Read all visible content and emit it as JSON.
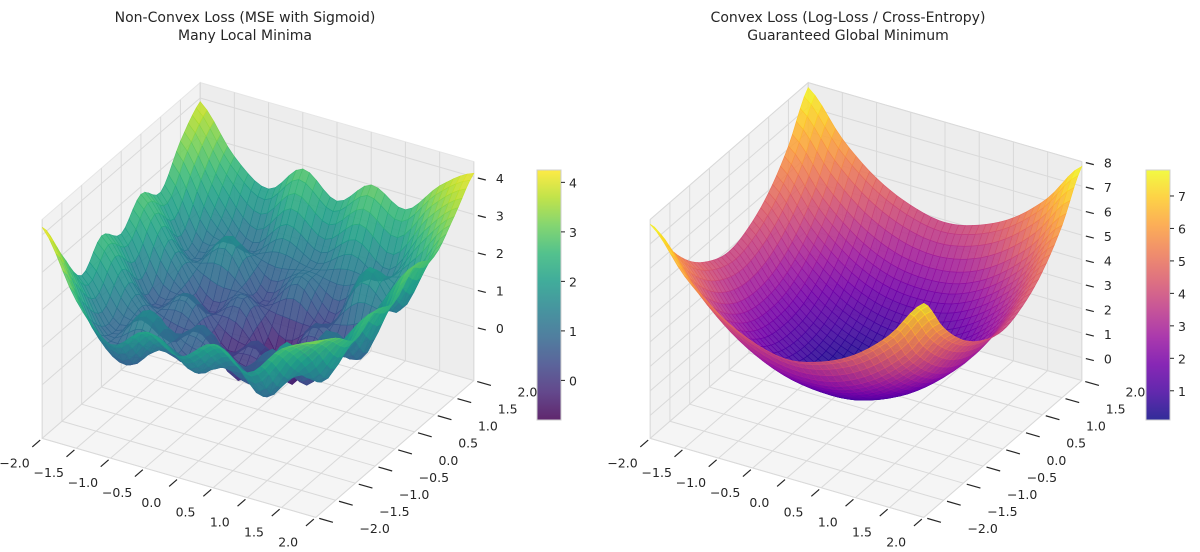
{
  "chart_data": [
    {
      "type": "surface3d",
      "title": [
        "Non-Convex Loss (MSE with Sigmoid)",
        "Many Local Minima"
      ],
      "colormap": "viridis",
      "xlim": [
        -2,
        2
      ],
      "ylim": [
        -2,
        2
      ],
      "zlim": [
        -1.43,
        4.41
      ],
      "xticks": [
        "−2.0",
        "−1.5",
        "−1.0",
        "−0.5",
        "0.0",
        "0.5",
        "1.0",
        "1.5",
        "2.0"
      ],
      "yticks": [
        "−2.0",
        "−1.5",
        "−1.0",
        "−0.5",
        "0.0",
        "0.5",
        "1.0",
        "1.5",
        "2.0"
      ],
      "zticks": [
        0,
        1,
        2,
        3,
        4
      ],
      "grid_axis": [
        -2,
        -1.5,
        -1,
        -0.5,
        0,
        0.5,
        1,
        1.5,
        2
      ],
      "z_grid": [
        [
          4.2,
          2.5,
          1.6,
          2.2,
          1.8,
          2.4,
          1.9,
          2.8,
          3.2
        ],
        [
          3.0,
          1.2,
          0.6,
          1.4,
          0.9,
          1.5,
          0.8,
          2.0,
          2.9
        ],
        [
          2.0,
          0.8,
          1.6,
          0.5,
          1.2,
          0.4,
          1.8,
          1.0,
          2.4
        ],
        [
          2.6,
          1.3,
          0.3,
          1.0,
          -0.2,
          0.9,
          0.2,
          1.6,
          2.7
        ],
        [
          2.2,
          0.6,
          1.1,
          -0.3,
          0.4,
          -0.5,
          1.2,
          0.7,
          2.5
        ],
        [
          2.8,
          1.5,
          0.2,
          0.8,
          -0.8,
          0.6,
          0.1,
          1.7,
          3.0
        ],
        [
          2.4,
          0.9,
          1.7,
          0.3,
          1.0,
          0.2,
          1.9,
          1.1,
          2.8
        ],
        [
          3.3,
          1.8,
          0.9,
          1.5,
          1.1,
          1.6,
          1.2,
          2.4,
          3.4
        ],
        [
          3.9,
          2.7,
          2.1,
          2.9,
          2.3,
          3.0,
          2.6,
          3.5,
          4.1
        ]
      ],
      "colorbar": {
        "min": -0.8,
        "max": 4.25,
        "ticks": [
          0,
          1,
          2,
          3,
          4
        ]
      },
      "grid": true
    },
    {
      "type": "surface3d",
      "title": [
        "Convex Loss (Log-Loss / Cross-Entropy)",
        "Guaranteed Global Minimum"
      ],
      "colormap": "plasma",
      "xlim": [
        -2,
        2
      ],
      "ylim": [
        -2,
        2
      ],
      "zlim": [
        -0.94,
        8.0
      ],
      "xticks": [
        "−2.0",
        "−1.5",
        "−1.0",
        "−0.5",
        "0.0",
        "0.5",
        "1.0",
        "1.5",
        "2.0"
      ],
      "yticks": [
        "−2.0",
        "−1.5",
        "−1.0",
        "−0.5",
        "0.0",
        "0.5",
        "1.0",
        "1.5",
        "2.0"
      ],
      "zticks": [
        0,
        1,
        2,
        3,
        4,
        5,
        6,
        7,
        8
      ],
      "grid_axis": [
        -2,
        -1.5,
        -1,
        -0.5,
        0,
        0.5,
        1,
        1.5,
        2
      ],
      "z_grid": [
        [
          7.8,
          6.1,
          4.9,
          4.2,
          3.9,
          4.2,
          4.9,
          6.1,
          7.8
        ],
        [
          6.1,
          4.4,
          3.2,
          2.5,
          2.3,
          2.5,
          3.2,
          4.4,
          6.1
        ],
        [
          4.9,
          3.2,
          2.0,
          1.3,
          1.1,
          1.3,
          2.0,
          3.2,
          4.9
        ],
        [
          4.2,
          2.5,
          1.3,
          0.6,
          0.3,
          0.6,
          1.3,
          2.5,
          4.2
        ],
        [
          3.9,
          2.3,
          1.1,
          0.3,
          0.1,
          0.3,
          1.1,
          2.3,
          3.9
        ],
        [
          4.2,
          2.5,
          1.3,
          0.6,
          0.3,
          0.6,
          1.3,
          2.5,
          4.2
        ],
        [
          4.9,
          3.2,
          2.0,
          1.3,
          1.1,
          1.3,
          2.0,
          3.2,
          4.9
        ],
        [
          6.1,
          4.4,
          3.2,
          2.5,
          2.3,
          2.5,
          3.2,
          4.4,
          6.1
        ],
        [
          7.8,
          6.1,
          4.9,
          4.2,
          3.9,
          4.2,
          4.9,
          6.1,
          7.8
        ]
      ],
      "colorbar": {
        "min": 0.1,
        "max": 7.8,
        "ticks": [
          1,
          2,
          3,
          4,
          5,
          6,
          7
        ]
      },
      "grid": true
    }
  ],
  "colors": {
    "viridis": [
      "#440154",
      "#482878",
      "#3e4989",
      "#31688e",
      "#26828e",
      "#1f9e89",
      "#35b779",
      "#6ece58",
      "#b5de2b",
      "#fde725"
    ],
    "plasma": [
      "#0d0887",
      "#46039f",
      "#7201a8",
      "#9c179e",
      "#bd3786",
      "#d8576b",
      "#ed7953",
      "#fb9f3a",
      "#fdca26",
      "#f0f921"
    ]
  }
}
